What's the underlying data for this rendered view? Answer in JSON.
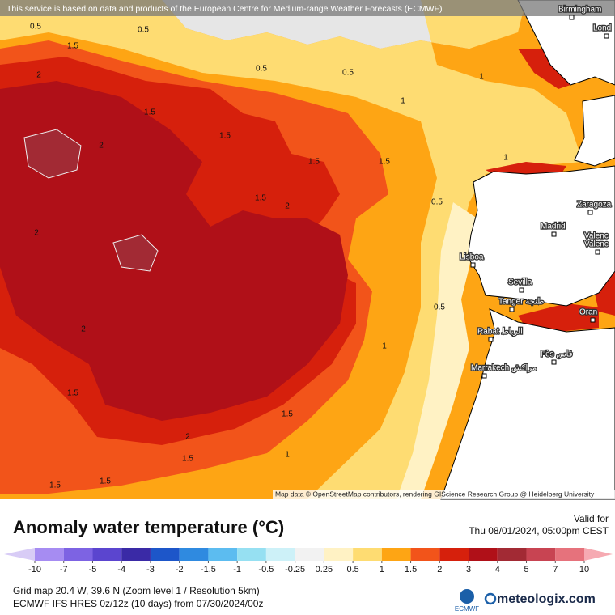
{
  "map": {
    "attribution_top": "This service is based on data and products of the European Centre for Medium-range Weather Forecasts (ECMWF)",
    "attribution_bottom": "Map data © OpenStreetMap contributors, rendering GIScience Research Group @ Heidelberg University",
    "cities": [
      "Birmingham",
      "Lond",
      "Zaragoza",
      "Madrid",
      "Valenc",
      "Valenc",
      "Lisboa",
      "Sevilla",
      "Tanger طنجة",
      "Oran",
      "Rabat الرباط",
      "Fès فاس",
      "Marrakech مراكش"
    ],
    "contour_labels": [
      "0.5",
      "0.5",
      "1.5",
      "0.5",
      "0.5",
      "2",
      "1.5",
      "1.5",
      "1",
      "1",
      "1.5",
      "1.5",
      "1.5",
      "0.5",
      "2",
      "2",
      "2",
      "0.5",
      "2",
      "1",
      "1.5",
      "1.5",
      "2",
      "1.5",
      "1",
      "1.5",
      "1.5",
      "1"
    ]
  },
  "legend": {
    "title": "Anomaly water temperature (°C)",
    "valid_label": "Valid for",
    "valid_time": "Thu 08/01/2024, 05:00pm CEST",
    "ticks": [
      -10,
      -7,
      -5,
      -4,
      -3,
      -2,
      -1.5,
      -1,
      -0.5,
      -0.25,
      0.25,
      0.5,
      1,
      1.5,
      2,
      3,
      4,
      5,
      7,
      10
    ],
    "colors": [
      "#d8ccf6",
      "#a68cf2",
      "#7d63e3",
      "#5b45cf",
      "#3a2aa6",
      "#1d56c9",
      "#2f8ae0",
      "#5cbcf0",
      "#96e0f2",
      "#cdf1f8",
      "#f2f2f2",
      "#fff2c4",
      "#fedc72",
      "#fea514",
      "#f2541a",
      "#d6200c",
      "#b01018",
      "#a22a34",
      "#c84452",
      "#e6727c",
      "#f6aab2"
    ]
  },
  "footer": {
    "grid_info": "Grid map 20.4 W, 39.6 N (Zoom level 1 / Resolution 5km)",
    "model_info": "ECMWF IFS HRES 0z/12z (10 days) from  07/30/2024/00z",
    "logo_ecmwf": "ECMWF",
    "logo_meteologix": "meteologix.com"
  }
}
